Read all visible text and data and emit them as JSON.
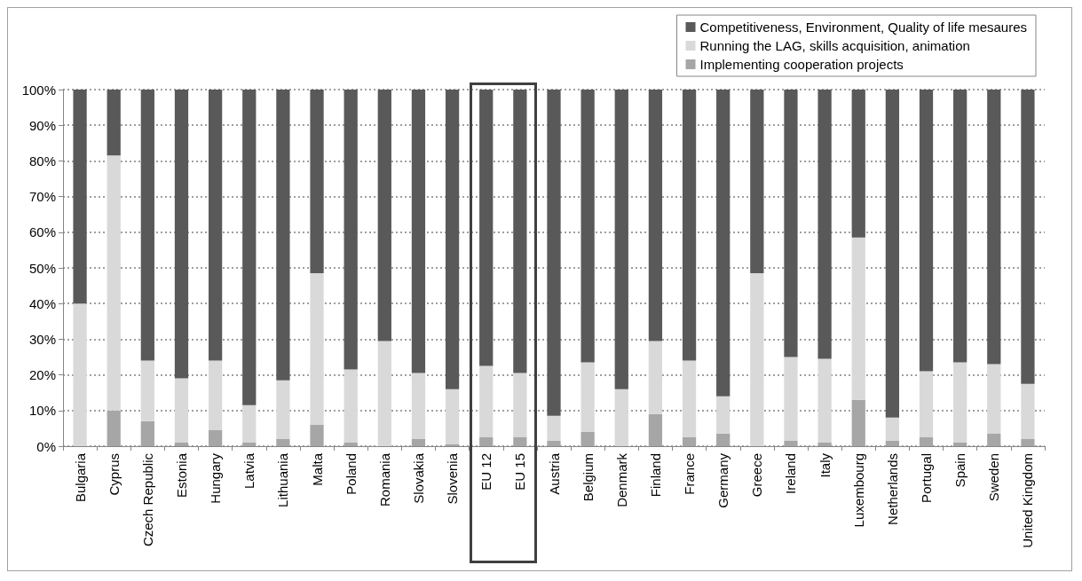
{
  "chart_data": {
    "type": "bar",
    "stacked": true,
    "categories": [
      "Bulgaria",
      "Cyprus",
      "Czech Republic",
      "Estonia",
      "Hungary",
      "Latvia",
      "Lithuania",
      "Malta",
      "Poland",
      "Romania",
      "Slovakia",
      "Slovenia",
      "EU 12",
      "EU 15",
      "Austria",
      "Belgium",
      "Denmark",
      "Finland",
      "France",
      "Germany",
      "Greece",
      "Ireland",
      "Italy",
      "Luxembourg",
      "Netherlands",
      "Portugal",
      "Spain",
      "Sweden",
      "United Kingdom"
    ],
    "series": [
      {
        "name": "Implementing cooperation projects",
        "color": "#a6a6a6",
        "values": [
          0,
          10,
          7,
          1,
          4.5,
          1,
          2,
          6,
          1,
          0,
          2,
          0.5,
          2.5,
          2.5,
          1.5,
          4,
          0,
          9,
          2.5,
          3.5,
          0,
          1.5,
          1,
          13,
          1.5,
          2.5,
          1,
          3.5,
          2
        ]
      },
      {
        "name": "Running the LAG, skills acquisition, animation",
        "color": "#d9d9d9",
        "values": [
          40,
          71.5,
          17,
          18,
          19.5,
          10.5,
          16.5,
          42.5,
          20.5,
          29.5,
          18.5,
          15.5,
          20,
          18,
          7,
          19.5,
          16,
          20.5,
          21.5,
          10.5,
          48.5,
          23.5,
          23.5,
          45.5,
          6.5,
          18.5,
          22.5,
          19.5,
          15.5
        ]
      },
      {
        "name": "Competitiveness, Environment, Quality of life mesaures",
        "color": "#595959",
        "values": [
          60,
          18.5,
          76,
          81,
          76,
          88.5,
          81.5,
          51.5,
          78.5,
          70.5,
          79.5,
          84,
          77.5,
          79.5,
          91.5,
          76.5,
          84,
          70.5,
          76,
          86,
          51.5,
          75,
          75.5,
          41.5,
          92,
          79,
          76.5,
          77,
          82.5
        ]
      }
    ],
    "ylim": [
      0,
      100
    ],
    "yticks": [
      {
        "value": 0,
        "label": "0%"
      },
      {
        "value": 10,
        "label": "10%"
      },
      {
        "value": 20,
        "label": "20%"
      },
      {
        "value": 30,
        "label": "30%"
      },
      {
        "value": 40,
        "label": "40%"
      },
      {
        "value": 50,
        "label": "50%"
      },
      {
        "value": 60,
        "label": "60%"
      },
      {
        "value": 70,
        "label": "70%"
      },
      {
        "value": 80,
        "label": "80%"
      },
      {
        "value": 90,
        "label": "90%"
      },
      {
        "value": 100,
        "label": "100%"
      }
    ],
    "grid": "y",
    "legend": "top right"
  }
}
